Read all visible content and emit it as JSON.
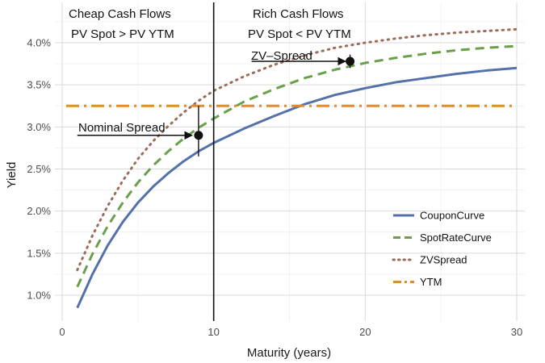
{
  "chart_data": {
    "type": "line",
    "title": "",
    "xlabel": "Maturity (years)",
    "ylabel": "Yield",
    "xlim": [
      0,
      30
    ],
    "ylim": [
      0.7,
      4.3
    ],
    "x_ticks": [
      "0",
      "10",
      "20",
      "30"
    ],
    "y_ticks": [
      "1.0%",
      "1.5%",
      "2.0%",
      "2.5%",
      "3.0%",
      "3.5%",
      "4.0%"
    ],
    "grid": true,
    "legend_position": "bottom-right",
    "series": [
      {
        "name": "CouponCurve",
        "style": "solid",
        "color": "#5471ab",
        "x": [
          1,
          2,
          3,
          4,
          5,
          6,
          7,
          8,
          9,
          10,
          12,
          14,
          16,
          18,
          20,
          22,
          24,
          26,
          28,
          30
        ],
        "values": [
          0.85,
          1.25,
          1.59,
          1.87,
          2.1,
          2.29,
          2.45,
          2.59,
          2.71,
          2.81,
          2.98,
          3.13,
          3.27,
          3.38,
          3.46,
          3.53,
          3.58,
          3.63,
          3.67,
          3.7
        ]
      },
      {
        "name": "SpotRateCurve",
        "style": "dashed",
        "color": "#6aa04b",
        "x": [
          1,
          2,
          3,
          4,
          5,
          6,
          7,
          8,
          9,
          10,
          12,
          14,
          16,
          18,
          20,
          22,
          24,
          26,
          28,
          30
        ],
        "values": [
          1.1,
          1.49,
          1.82,
          2.1,
          2.34,
          2.54,
          2.71,
          2.86,
          2.99,
          3.1,
          3.3,
          3.45,
          3.58,
          3.68,
          3.76,
          3.82,
          3.87,
          3.91,
          3.94,
          3.96
        ]
      },
      {
        "name": "ZVSpread",
        "style": "dotted",
        "color": "#9d6b5a",
        "x": [
          1,
          2,
          3,
          4,
          5,
          6,
          7,
          8,
          9,
          10,
          12,
          14,
          16,
          18,
          20,
          22,
          24,
          26,
          28,
          30
        ],
        "values": [
          1.3,
          1.71,
          2.06,
          2.36,
          2.62,
          2.83,
          3.01,
          3.17,
          3.31,
          3.43,
          3.6,
          3.74,
          3.85,
          3.94,
          4.0,
          4.05,
          4.09,
          4.12,
          4.14,
          4.16
        ]
      },
      {
        "name": "YTM",
        "style": "dashdot",
        "color": "#e08b2e",
        "x": [
          0,
          30
        ],
        "values": [
          3.25,
          3.25
        ]
      }
    ],
    "vertical_line": {
      "x": 10
    },
    "points": [
      {
        "x": 9,
        "y": 2.9,
        "err_low": 2.65,
        "err_high": 3.25
      },
      {
        "x": 19,
        "y": 3.78,
        "err_low": 3.7,
        "err_high": 3.86
      }
    ],
    "annotations": {
      "left_line1": "Cheap Cash Flows",
      "left_line2": "PV Spot > PV YTM",
      "right_line1": "Rich Cash Flows",
      "right_line2": "PV Spot < PV YTM",
      "nominal_spread": {
        "text": "Nominal Spread",
        "arrow_from_x": 1,
        "arrow_to_x": 9,
        "y": 2.9
      },
      "zv_spread": {
        "text": "ZV–Spread",
        "arrow_from_x": 12.5,
        "arrow_to_x": 18.8,
        "y": 3.78
      }
    }
  }
}
